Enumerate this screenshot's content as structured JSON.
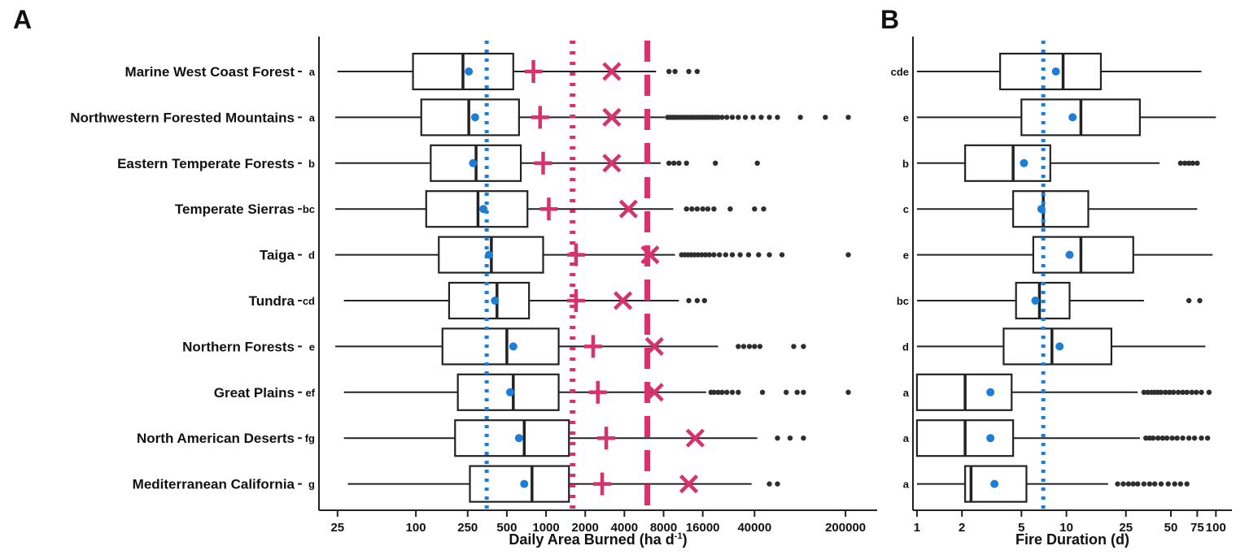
{
  "colors": {
    "axis": "#222222",
    "blue": "#1c7ed6",
    "pink": "#d6336c",
    "outlier": "#2e2e2e",
    "box_fill": "#ffffff"
  },
  "chart_data": [
    {
      "type": "boxplot",
      "panel_label": "A",
      "orientation": "horizontal",
      "x_scale": "log10",
      "xlabel": "Daily Area Burned (ha d⁻¹)",
      "xlabel_parts": {
        "main": "Daily Area Burned (ha d",
        "sup": "-1",
        "close": ")"
      },
      "x_ticks": [
        25,
        100,
        250,
        500,
        1000,
        2000,
        4000,
        8000,
        16000,
        40000,
        200000
      ],
      "x_domain": [
        18,
        350000
      ],
      "grid": false,
      "reference_lines": [
        {
          "name": "blue-dotted-reference",
          "value": 350,
          "color": "#1c7ed6",
          "style": "dotted"
        },
        {
          "name": "pink-dotted-reference",
          "value": 1600,
          "color": "#d6336c",
          "style": "dotted"
        },
        {
          "name": "pink-dashed-reference",
          "value": 6000,
          "color": "#d6336c",
          "style": "dashed"
        }
      ],
      "rows": [
        {
          "label": "Marine West Coast Forest",
          "letter": "a",
          "whisker_low": 25,
          "q1": 95,
          "median": 230,
          "mean": 255,
          "q3": 560,
          "whisker_high": 7000,
          "plus": 800,
          "cross": 3200,
          "outliers": [
            8800,
            9800,
            12500,
            14500
          ]
        },
        {
          "label": "Northwestern Forested Mountains",
          "letter": "a",
          "whisker_low": 24,
          "q1": 110,
          "median": 255,
          "mean": 285,
          "q3": 620,
          "whisker_high": 8200,
          "plus": 900,
          "cross": 3200,
          "outliers": [
            8600,
            9000,
            9400,
            9800,
            10200,
            10700,
            11200,
            11700,
            12300,
            12900,
            13500,
            14200,
            14900,
            15600,
            16400,
            17200,
            18100,
            19000,
            20000,
            21000,
            22500,
            24500,
            27000,
            30000,
            34000,
            39000,
            45000,
            52000,
            60000,
            90000,
            140000,
            210000
          ]
        },
        {
          "label": "Eastern Temperate Forests",
          "letter": "b",
          "whisker_low": 24,
          "q1": 130,
          "median": 290,
          "mean": 275,
          "q3": 640,
          "whisker_high": 7600,
          "plus": 950,
          "cross": 3200,
          "outliers": [
            8800,
            9600,
            10500,
            12000,
            20000,
            42000
          ]
        },
        {
          "label": "Temperate Sierras",
          "letter": "bc",
          "whisker_low": 24,
          "q1": 120,
          "median": 300,
          "mean": 330,
          "q3": 720,
          "whisker_high": 9500,
          "plus": 1050,
          "cross": 4300,
          "outliers": [
            12000,
            13200,
            14500,
            16000,
            17500,
            19500,
            26000,
            40000,
            47000
          ]
        },
        {
          "label": "Taiga",
          "letter": "d",
          "whisker_low": 24,
          "q1": 150,
          "median": 380,
          "mean": 365,
          "q3": 950,
          "whisker_high": 9800,
          "plus": 1700,
          "cross": 6300,
          "outliers": [
            11000,
            11600,
            12300,
            13000,
            13800,
            14700,
            15700,
            16800,
            18000,
            19500,
            21500,
            24000,
            27000,
            31000,
            36000,
            43000,
            52000,
            65000,
            210000
          ]
        },
        {
          "label": "Tundra",
          "letter": "cd",
          "whisker_low": 28,
          "q1": 180,
          "median": 420,
          "mean": 405,
          "q3": 740,
          "whisker_high": 10500,
          "plus": 1700,
          "cross": 3900,
          "outliers": [
            12500,
            14500,
            16500
          ]
        },
        {
          "label": "Northern Forests",
          "letter": "e",
          "whisker_low": 24,
          "q1": 160,
          "median": 500,
          "mean": 560,
          "q3": 1250,
          "whisker_high": 21000,
          "plus": 2300,
          "cross": 6800,
          "outliers": [
            30000,
            33000,
            36500,
            40000,
            44000,
            80000,
            95000
          ]
        },
        {
          "label": "Great Plains",
          "letter": "ef",
          "whisker_low": 28,
          "q1": 210,
          "median": 560,
          "mean": 530,
          "q3": 1250,
          "whisker_high": 17000,
          "plus": 2500,
          "cross": 6800,
          "outliers": [
            18500,
            19500,
            21000,
            22500,
            24500,
            27000,
            30000,
            46000,
            70000,
            85000,
            95000,
            210000
          ]
        },
        {
          "label": "North American Deserts",
          "letter": "fg",
          "whisker_low": 28,
          "q1": 200,
          "median": 680,
          "mean": 620,
          "q3": 1500,
          "whisker_high": 42000,
          "plus": 2900,
          "cross": 14000,
          "outliers": [
            60000,
            75000,
            95000
          ]
        },
        {
          "label": "Mediterranean California",
          "letter": "g",
          "whisker_low": 30,
          "q1": 260,
          "median": 780,
          "mean": 680,
          "q3": 1500,
          "whisker_high": 38000,
          "plus": 2700,
          "cross": 12500,
          "outliers": [
            52000,
            60000
          ]
        }
      ]
    },
    {
      "type": "boxplot",
      "panel_label": "B",
      "orientation": "horizontal",
      "x_scale": "log10",
      "xlabel": "Fire Duration (d)",
      "x_ticks": [
        1,
        2,
        5,
        10,
        25,
        50,
        75,
        100
      ],
      "x_domain": [
        0.94,
        128
      ],
      "grid": false,
      "reference_lines": [
        {
          "name": "blue-dotted-reference",
          "value": 7,
          "color": "#1c7ed6",
          "style": "dotted"
        }
      ],
      "rows": [
        {
          "letter": "cde",
          "whisker_low": 1,
          "q1": 3.6,
          "median": 9.5,
          "mean": 8.5,
          "q3": 17,
          "whisker_high": 80,
          "outliers": []
        },
        {
          "letter": "e",
          "whisker_low": 1,
          "q1": 5,
          "median": 12.5,
          "mean": 11,
          "q3": 31,
          "whisker_high": 100,
          "outliers": []
        },
        {
          "letter": "b",
          "whisker_low": 1,
          "q1": 2.1,
          "median": 4.4,
          "mean": 5.2,
          "q3": 7.8,
          "whisker_high": 42,
          "outliers": [
            58,
            62,
            66,
            70,
            75
          ]
        },
        {
          "letter": "c",
          "whisker_low": 1,
          "q1": 4.4,
          "median": 7,
          "mean": 6.8,
          "q3": 14,
          "whisker_high": 75,
          "outliers": []
        },
        {
          "letter": "e",
          "whisker_low": 1,
          "q1": 6,
          "median": 12.5,
          "mean": 10.5,
          "q3": 28,
          "whisker_high": 95,
          "outliers": []
        },
        {
          "letter": "bc",
          "whisker_low": 1,
          "q1": 4.6,
          "median": 6.6,
          "mean": 6.2,
          "q3": 10.5,
          "whisker_high": 33,
          "outliers": [
            66,
            78
          ]
        },
        {
          "letter": "d",
          "whisker_low": 1,
          "q1": 3.8,
          "median": 8,
          "mean": 9,
          "q3": 20,
          "whisker_high": 85,
          "outliers": []
        },
        {
          "letter": "a",
          "whisker_low": 1,
          "q1": 1,
          "median": 2.1,
          "mean": 3.1,
          "q3": 4.3,
          "whisker_high": 30,
          "outliers": [
            33,
            35,
            37,
            39,
            41,
            43,
            46,
            49,
            52,
            56,
            60,
            64,
            69,
            74,
            80,
            90
          ]
        },
        {
          "letter": "a",
          "whisker_low": 1,
          "q1": 1,
          "median": 2.1,
          "mean": 3.1,
          "q3": 4.4,
          "whisker_high": 31,
          "outliers": [
            34,
            36,
            38,
            41,
            44,
            47,
            51,
            55,
            60,
            66,
            72,
            80,
            88
          ]
        },
        {
          "letter": "a",
          "whisker_low": 1,
          "q1": 2.1,
          "median": 2.3,
          "mean": 3.3,
          "q3": 5.4,
          "whisker_high": 19,
          "outliers": [
            22,
            24,
            26,
            28,
            30,
            33,
            36,
            39,
            43,
            48,
            53,
            58,
            64
          ]
        }
      ]
    }
  ]
}
